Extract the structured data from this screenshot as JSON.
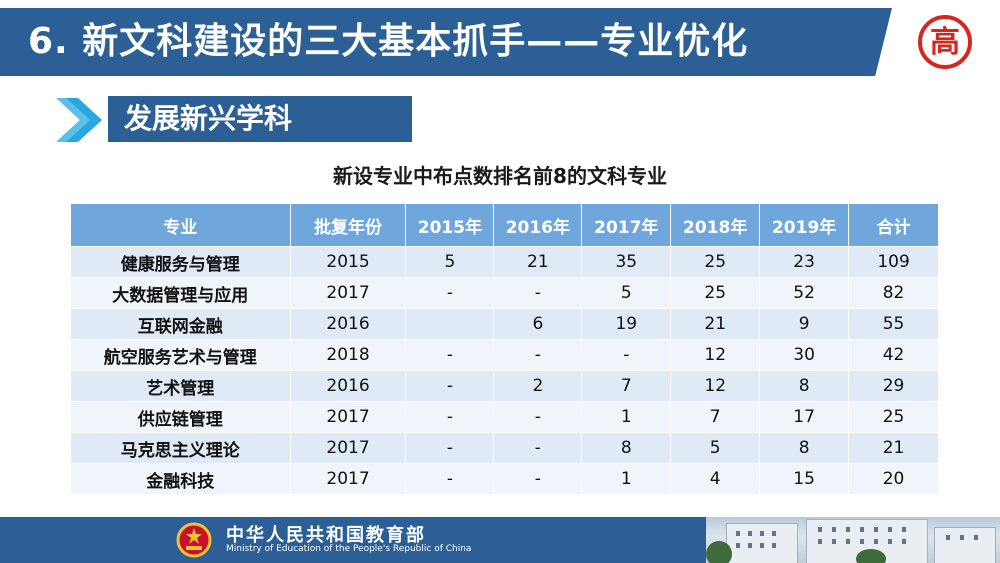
{
  "header": {
    "title": "6. 新文科建设的三大基本抓手——专业优化",
    "logo_text": "高"
  },
  "section": {
    "label": "发展新兴学科"
  },
  "table": {
    "title": "新设专业中布点数排名前8的文科专业",
    "columns": [
      "专业",
      "批复年份",
      "2015年",
      "2016年",
      "2017年",
      "2018年",
      "2019年",
      "合计"
    ],
    "rows": [
      [
        "健康服务与管理",
        "2015",
        "5",
        "21",
        "35",
        "25",
        "23",
        "109"
      ],
      [
        "大数据管理与应用",
        "2017",
        "-",
        "-",
        "5",
        "25",
        "52",
        "82"
      ],
      [
        "互联网金融",
        "2016",
        "",
        "6",
        "19",
        "21",
        "9",
        "55"
      ],
      [
        "航空服务艺术与管理",
        "2018",
        "-",
        "-",
        "-",
        "12",
        "30",
        "42"
      ],
      [
        "艺术管理",
        "2016",
        "-",
        "2",
        "7",
        "12",
        "8",
        "29"
      ],
      [
        "供应链管理",
        "2017",
        "-",
        "-",
        "1",
        "7",
        "17",
        "25"
      ],
      [
        "马克思主义理论",
        "2017",
        "-",
        "-",
        "8",
        "5",
        "8",
        "21"
      ],
      [
        "金融科技",
        "2017",
        "-",
        "-",
        "1",
        "4",
        "15",
        "20"
      ]
    ]
  },
  "footer": {
    "cn": "中华人民共和国教育部",
    "en": "Ministry of Education of the People's Republic of China"
  },
  "colors": {
    "primary": "#2c5f95",
    "table_header": "#6fa7dc",
    "row_odd": "#dfeaf6",
    "row_even": "#f0f5fb",
    "logo_red": "#d7261f"
  }
}
